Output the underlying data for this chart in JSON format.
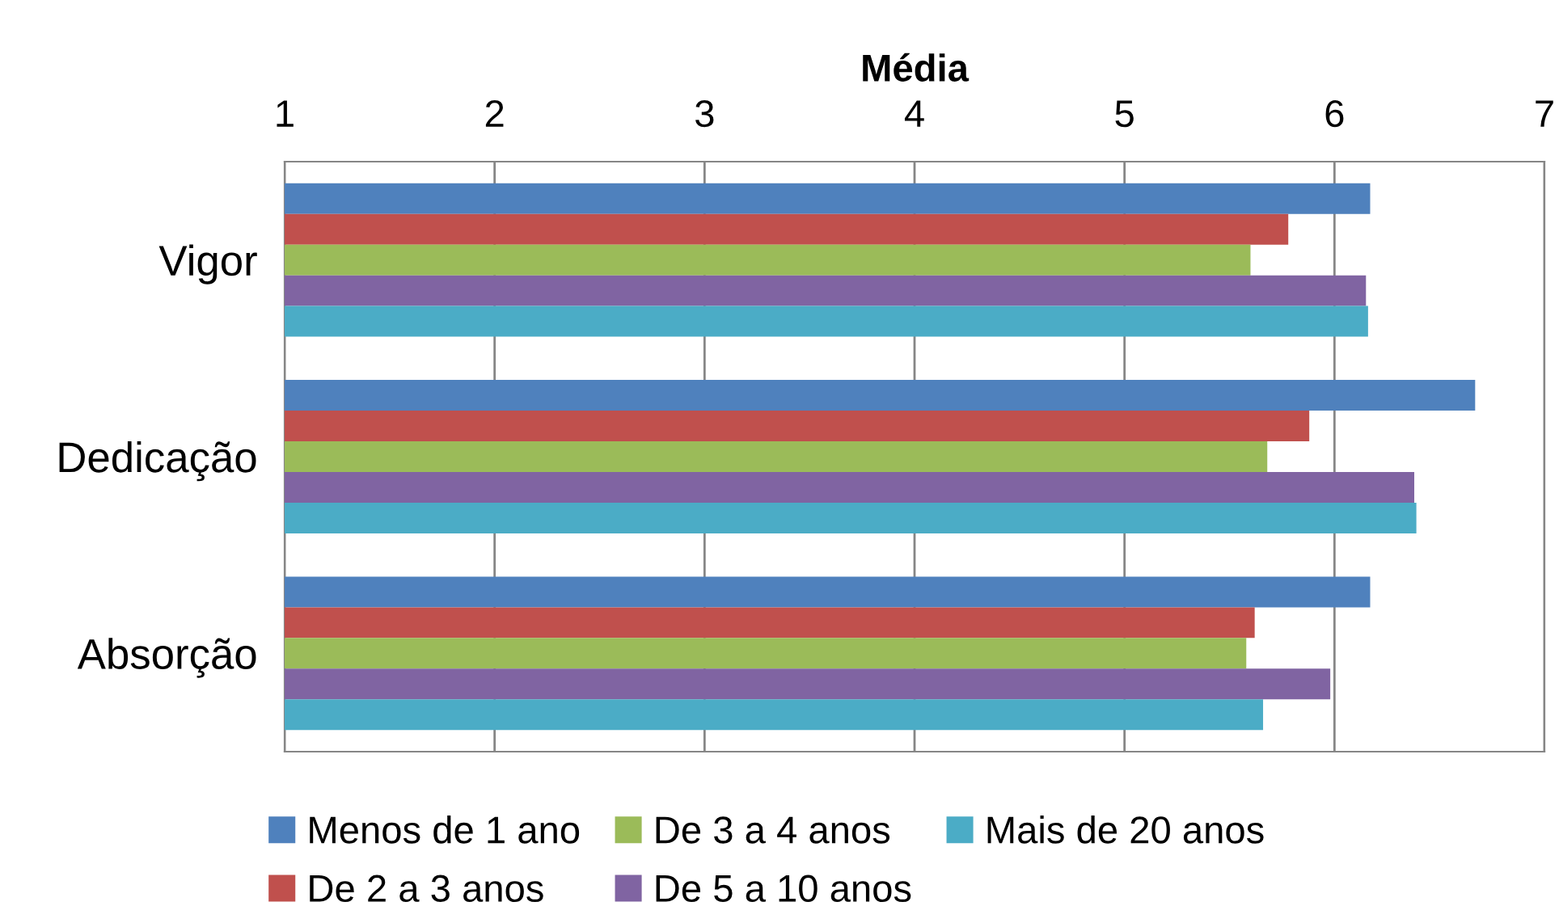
{
  "chart_data": {
    "type": "bar",
    "orientation": "horizontal",
    "xlabel": "Média",
    "categories": [
      "Vigor",
      "Dedicação",
      "Absorção"
    ],
    "series": [
      {
        "name": "Menos de 1 ano",
        "color": "#4f81bd",
        "values": [
          6.17,
          6.67,
          6.17
        ]
      },
      {
        "name": "De 2 a 3 anos",
        "color": "#c0504d",
        "values": [
          5.78,
          5.88,
          5.62
        ]
      },
      {
        "name": "De 3 a 4 anos",
        "color": "#9bbb59",
        "values": [
          5.6,
          5.68,
          5.58
        ]
      },
      {
        "name": "De 5 a 10 anos",
        "color": "#8064a2",
        "values": [
          6.15,
          6.38,
          5.98
        ]
      },
      {
        "name": "Mais de 20 anos",
        "color": "#4bacc6",
        "values": [
          6.16,
          6.39,
          5.66
        ]
      }
    ],
    "xlim": [
      1,
      7
    ],
    "xticks": [
      1,
      2,
      3,
      4,
      5,
      6,
      7
    ],
    "grid": "x",
    "legend": "bottom"
  }
}
